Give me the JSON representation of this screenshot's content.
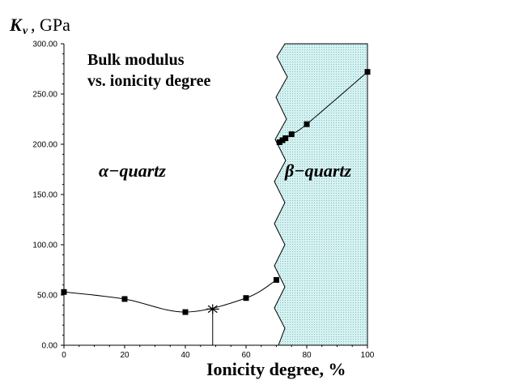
{
  "chart_data": {
    "type": "scatter",
    "title_lines": [
      "Bulk modulus",
      "vs. ionicity degree"
    ],
    "ylabel": {
      "symbol": "K",
      "subscript": "v",
      "unit": ", GPa"
    },
    "xlabel": "Ionicity degree, %",
    "xlim": [
      0,
      100
    ],
    "ylim": [
      0,
      300
    ],
    "x_ticks": [
      "0",
      "20",
      "40",
      "60",
      "80",
      "100"
    ],
    "y_ticks": [
      "0.00",
      "50.00",
      "100.00",
      "150.00",
      "200.00",
      "250.00",
      "300.00"
    ],
    "grid": false,
    "annotations": [
      "α−quartz",
      "β−quartz"
    ],
    "series": [
      {
        "points": [
          {
            "x": 0,
            "y": 53
          },
          {
            "x": 20,
            "y": 46
          },
          {
            "x": 40,
            "y": 33
          },
          {
            "x": 60,
            "y": 47
          },
          {
            "x": 70,
            "y": 65
          },
          {
            "x": 71,
            "y": 202
          },
          {
            "x": 72,
            "y": 204
          },
          {
            "x": 73,
            "y": 206
          },
          {
            "x": 75,
            "y": 210
          },
          {
            "x": 80,
            "y": 220
          },
          {
            "x": 100,
            "y": 272
          }
        ]
      }
    ],
    "marker_star": {
      "x": 49,
      "y": 36
    },
    "colors": {
      "beta_region_fill": "#cfeeee",
      "beta_region_dots": "#8cc8c8",
      "line": "#000000"
    }
  }
}
